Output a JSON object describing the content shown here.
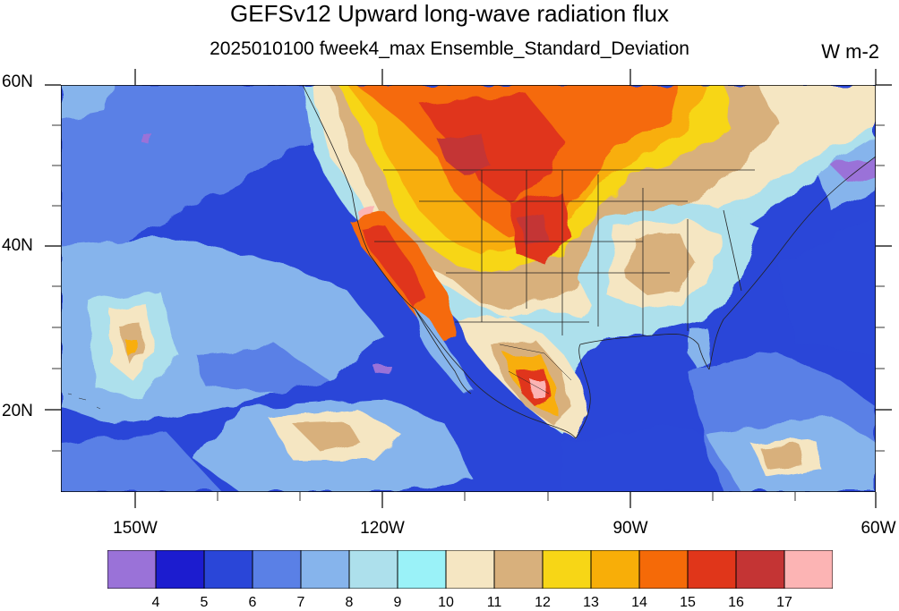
{
  "title": "GEFSv12 Upward long-wave radiation flux",
  "subtitle": "2025010100 fweek4_max Ensemble_Standard_Deviation",
  "units": "W m-2",
  "lat_labels": [
    "60N",
    "40N",
    "20N"
  ],
  "lon_labels": [
    "150W",
    "120W",
    "90W",
    "60W"
  ],
  "colorbar": {
    "levels": [
      "4",
      "5",
      "6",
      "7",
      "8",
      "9",
      "10",
      "11",
      "12",
      "13",
      "14",
      "15",
      "16",
      "17"
    ],
    "colors": [
      "#9a72d8",
      "#1c1ccf",
      "#2a46d8",
      "#5a80e6",
      "#86b4ec",
      "#ade0ec",
      "#9af2f8",
      "#f5e6c2",
      "#d8b07c",
      "#f7d616",
      "#f8ae08",
      "#f56a08",
      "#e0361a",
      "#c43434",
      "#fcb4b4"
    ]
  },
  "map_extent": {
    "lon": [
      -159,
      -60
    ],
    "lat": [
      10,
      60
    ]
  }
}
